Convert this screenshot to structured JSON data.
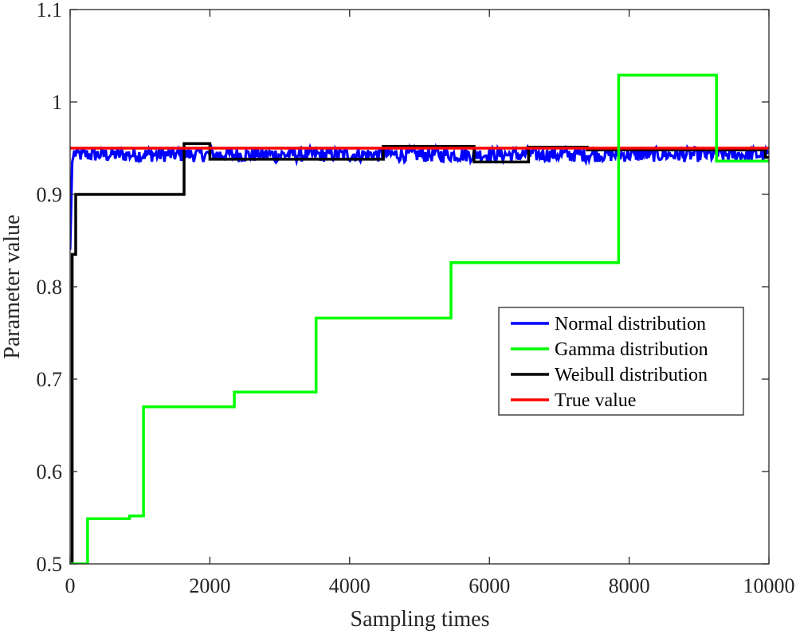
{
  "chart_data": {
    "type": "line",
    "title": "",
    "xlabel": "Sampling times",
    "ylabel": "Parameter value",
    "xlim": [
      0,
      10000
    ],
    "ylim": [
      0.5,
      1.1
    ],
    "xticks": [
      0,
      2000,
      4000,
      6000,
      8000,
      10000
    ],
    "xtick_labels": [
      "0",
      "2000",
      "4000",
      "6000",
      "8000",
      "10000"
    ],
    "yticks": [
      0.5,
      0.6,
      0.7,
      0.8,
      0.9,
      1.0,
      1.1
    ],
    "ytick_labels": [
      "0.5",
      "0.6",
      "0.7",
      "0.8",
      "0.9",
      "1",
      "1.1"
    ],
    "grid": false,
    "legend_position": "right",
    "series": [
      {
        "name": "Normal distribution",
        "color": "#0000ff",
        "style": "noisy",
        "x": [
          0,
          30,
          60,
          100,
          10000
        ],
        "y": [
          0.84,
          0.935,
          0.945,
          0.943,
          0.943
        ],
        "noise_amplitude": 0.008
      },
      {
        "name": "Gamma distribution",
        "color": "#00ff00",
        "style": "step",
        "x": [
          0,
          250,
          850,
          1050,
          2350,
          3520,
          5450,
          7850,
          9250,
          10000
        ],
        "y": [
          0.5,
          0.549,
          0.552,
          0.67,
          0.686,
          0.766,
          0.826,
          1.029,
          0.936,
          0.936
        ]
      },
      {
        "name": "Weibull distribution",
        "color": "#000000",
        "style": "step",
        "x": [
          0,
          30,
          80,
          1630,
          2000,
          4480,
          5780,
          6560,
          7400,
          9950,
          10000
        ],
        "y": [
          0.5,
          0.835,
          0.9,
          0.955,
          0.938,
          0.952,
          0.935,
          0.951,
          0.948,
          0.94,
          0.94
        ]
      },
      {
        "name": "True value",
        "color": "#ff0000",
        "style": "line",
        "x": [
          0,
          10000
        ],
        "y": [
          0.95,
          0.95
        ]
      }
    ]
  }
}
